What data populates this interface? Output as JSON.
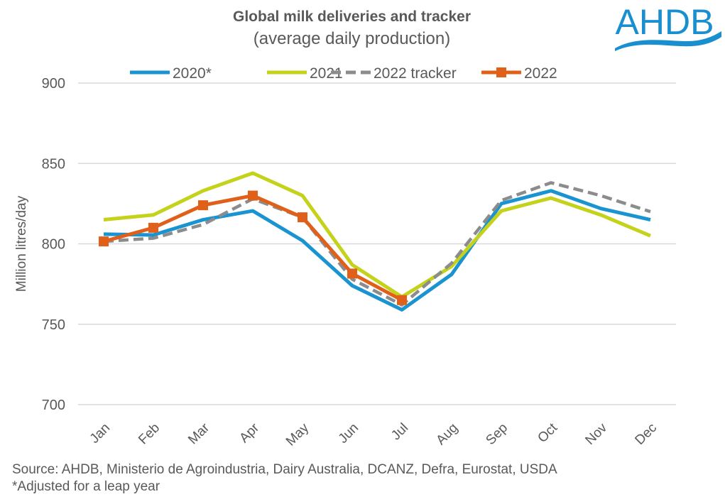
{
  "chart_data": {
    "type": "line",
    "title": "Global milk deliveries and tracker",
    "subtitle": "(average daily production)",
    "ylabel": "Million litres/day",
    "xlabel": "",
    "ylim": [
      700,
      900
    ],
    "yticks": [
      700,
      750,
      800,
      850,
      900
    ],
    "grid": true,
    "legend_position": "top",
    "categories": [
      "Jan",
      "Feb",
      "Mar",
      "Apr",
      "May",
      "Jun",
      "Jul",
      "Aug",
      "Sep",
      "Oct",
      "Nov",
      "Dec"
    ],
    "series": [
      {
        "name": "2020*",
        "color": "#1a94d0",
        "style": "solid",
        "marker": "none",
        "values": [
          806,
          805.5,
          815,
          820.5,
          802,
          774,
          759,
          781,
          825,
          833,
          822,
          815
        ]
      },
      {
        "name": "2021",
        "color": "#c5d21c",
        "style": "solid",
        "marker": "none",
        "values": [
          815,
          818,
          833,
          844,
          830,
          787,
          767,
          786,
          820.5,
          828.5,
          818,
          805
        ]
      },
      {
        "name": "2022 tracker",
        "color": "#8c8c8c",
        "style": "dashed",
        "marker": "none",
        "values": [
          801.5,
          803.5,
          812,
          828,
          816.5,
          778,
          762,
          788,
          827,
          838,
          830,
          820
        ]
      },
      {
        "name": "2022",
        "color": "#e0601a",
        "style": "solid",
        "marker": "square",
        "values": [
          801.5,
          810,
          824,
          830,
          816.5,
          781.5,
          765,
          null,
          null,
          null,
          null,
          null
        ]
      }
    ]
  },
  "source": "Source: AHDB, Ministerio de Agroindustria, Dairy Australia, DCANZ, Defra, Eurostat, USDA",
  "footnote": "*Adjusted for a leap year",
  "logo": {
    "text": "AHDB",
    "color": "#1a8fd0"
  }
}
